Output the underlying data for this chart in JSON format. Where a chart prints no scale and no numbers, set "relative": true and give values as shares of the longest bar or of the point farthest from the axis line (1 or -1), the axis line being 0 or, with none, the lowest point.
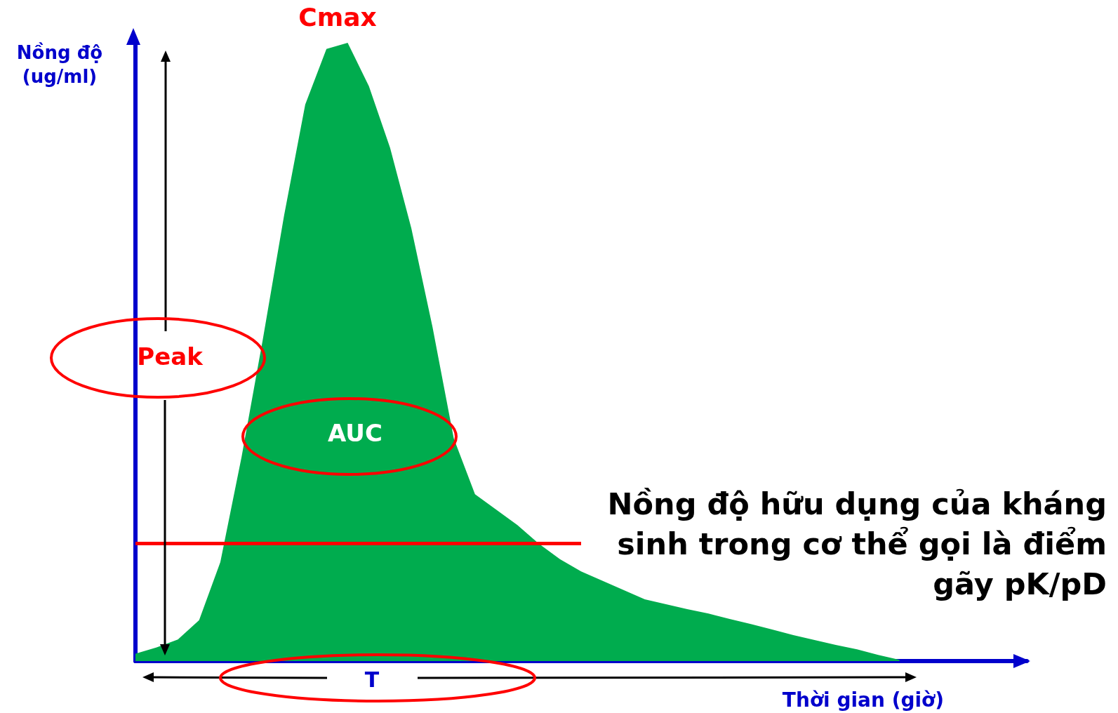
{
  "chart_data": {
    "type": "area",
    "relative": true,
    "xlabel": "Thời gian (giờ)",
    "ylabel": "Nồng độ (ug/ml)",
    "categories": [
      null,
      null,
      null,
      null,
      null,
      null,
      null,
      null,
      null,
      null,
      null,
      null,
      null,
      null,
      null,
      null,
      null,
      null,
      null,
      null,
      null,
      null,
      null,
      null,
      null,
      null,
      null,
      null,
      null,
      null,
      null,
      null,
      null,
      null,
      null,
      null,
      null,
      null,
      null,
      null,
      null,
      null,
      null
    ],
    "values": [
      0.012,
      0.022,
      0.035,
      0.066,
      0.16,
      0.33,
      0.52,
      0.72,
      0.9,
      0.99,
      1,
      0.93,
      0.83,
      0.7,
      0.54,
      0.36,
      0.27,
      0.245,
      0.22,
      0.19,
      0.165,
      0.145,
      0.13,
      0.115,
      0.1,
      0.092,
      0.084,
      0.077,
      0.068,
      0.06,
      0.051,
      0.042,
      0.034,
      0.026,
      0.019,
      0.01,
      0.002,
      null,
      null,
      null,
      null,
      null,
      null
    ],
    "color": "#00ac4e",
    "ref_lines": [
      {
        "axis": "y",
        "value": 0.19,
        "label": "Nồng độ hữu dụng của kháng sinh trong cơ thể gọi là điểm gãy pK/pD",
        "color": "#ff0000"
      }
    ],
    "annotations": [
      "Cmax",
      "Peak",
      "AUC",
      "T"
    ],
    "grid": false,
    "marker": "none"
  }
}
